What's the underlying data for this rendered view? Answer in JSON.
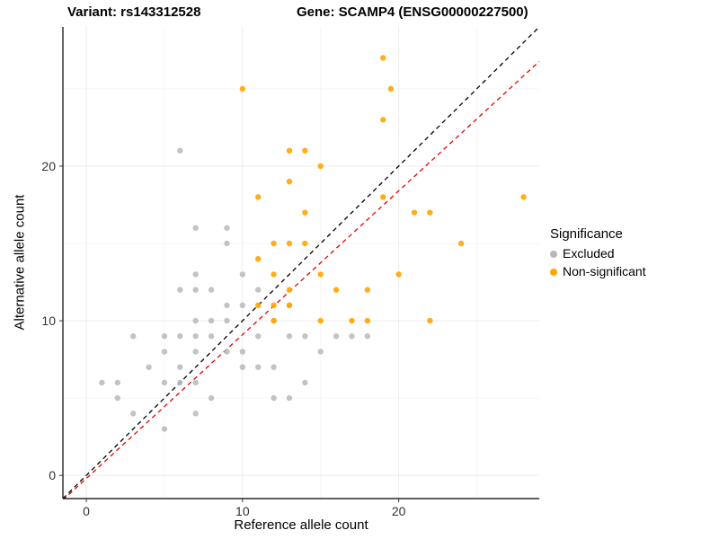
{
  "titles": {
    "variant": "Variant: rs143312528",
    "gene": "Gene: SCAMP4 (ENSG00000227500)"
  },
  "chart_data": {
    "type": "scatter",
    "xlabel": "Reference allele count",
    "ylabel": "Alternative allele count",
    "xlim": [
      -1.5,
      29
    ],
    "ylim": [
      -1.5,
      29
    ],
    "xticks": [
      0,
      10,
      20
    ],
    "yticks": [
      0,
      10,
      20
    ],
    "xticks_minor": [
      5,
      15,
      25
    ],
    "yticks_minor": [
      5,
      15,
      25
    ],
    "style": {
      "background": "#ffffff",
      "grid_major": "#ebebeb",
      "grid_minor": "#f6f6f6",
      "axis_line": "#000000",
      "tick_text": "#333333"
    },
    "legend": {
      "title": "Significance",
      "entries": [
        {
          "label": "Excluded",
          "color": "#b8b8b8"
        },
        {
          "label": "Non-significant",
          "color": "#ffa500"
        }
      ]
    },
    "series": [
      {
        "name": "Excluded",
        "color": "#b8b8b8",
        "opacity": 0.85,
        "points": [
          [
            1,
            6
          ],
          [
            2,
            5
          ],
          [
            2,
            6
          ],
          [
            3,
            4
          ],
          [
            3,
            9
          ],
          [
            4,
            7
          ],
          [
            5,
            3
          ],
          [
            5,
            6
          ],
          [
            5,
            8
          ],
          [
            5,
            9
          ],
          [
            6,
            6
          ],
          [
            6,
            7
          ],
          [
            6,
            9
          ],
          [
            6,
            12
          ],
          [
            6,
            21
          ],
          [
            7,
            4
          ],
          [
            7,
            6
          ],
          [
            7,
            8
          ],
          [
            7,
            9
          ],
          [
            7,
            10
          ],
          [
            7,
            12
          ],
          [
            7,
            13
          ],
          [
            7,
            16
          ],
          [
            8,
            5
          ],
          [
            8,
            9
          ],
          [
            8,
            10
          ],
          [
            8,
            12
          ],
          [
            9,
            8
          ],
          [
            9,
            10
          ],
          [
            9,
            11
          ],
          [
            9,
            15
          ],
          [
            9,
            16
          ],
          [
            10,
            7
          ],
          [
            10,
            8
          ],
          [
            10,
            11
          ],
          [
            10,
            13
          ],
          [
            11,
            7
          ],
          [
            11,
            9
          ],
          [
            11,
            12
          ],
          [
            12,
            5
          ],
          [
            12,
            7
          ],
          [
            12,
            10
          ],
          [
            13,
            5
          ],
          [
            13,
            9
          ],
          [
            13,
            11
          ],
          [
            14,
            6
          ],
          [
            14,
            9
          ],
          [
            15,
            8
          ],
          [
            16,
            9
          ],
          [
            17,
            9
          ],
          [
            18,
            9
          ]
        ]
      },
      {
        "name": "Non-significant",
        "color": "#ffa500",
        "opacity": 0.9,
        "points": [
          [
            10,
            25
          ],
          [
            11,
            11
          ],
          [
            11,
            14
          ],
          [
            11,
            18
          ],
          [
            12,
            10
          ],
          [
            12,
            11
          ],
          [
            12,
            13
          ],
          [
            12,
            15
          ],
          [
            13,
            11
          ],
          [
            13,
            12
          ],
          [
            13,
            15
          ],
          [
            13,
            19
          ],
          [
            13,
            21
          ],
          [
            14,
            15
          ],
          [
            14,
            17
          ],
          [
            14,
            21
          ],
          [
            15,
            10
          ],
          [
            15,
            13
          ],
          [
            15,
            20
          ],
          [
            16,
            12
          ],
          [
            17,
            10
          ],
          [
            18,
            10
          ],
          [
            18,
            12
          ],
          [
            19,
            18
          ],
          [
            19,
            23
          ],
          [
            19,
            27
          ],
          [
            19.5,
            25
          ],
          [
            20,
            13
          ],
          [
            21,
            17
          ],
          [
            22,
            10
          ],
          [
            22,
            17
          ],
          [
            24,
            15
          ],
          [
            28,
            18
          ]
        ]
      }
    ],
    "lines": [
      {
        "name": "identity-line",
        "color": "#000000",
        "slope": 1,
        "intercept": 0,
        "dash": "5,4"
      },
      {
        "name": "regression-line",
        "color": "#e60000",
        "slope": 0.93,
        "intercept": -0.2,
        "dash": "5,4"
      }
    ]
  }
}
